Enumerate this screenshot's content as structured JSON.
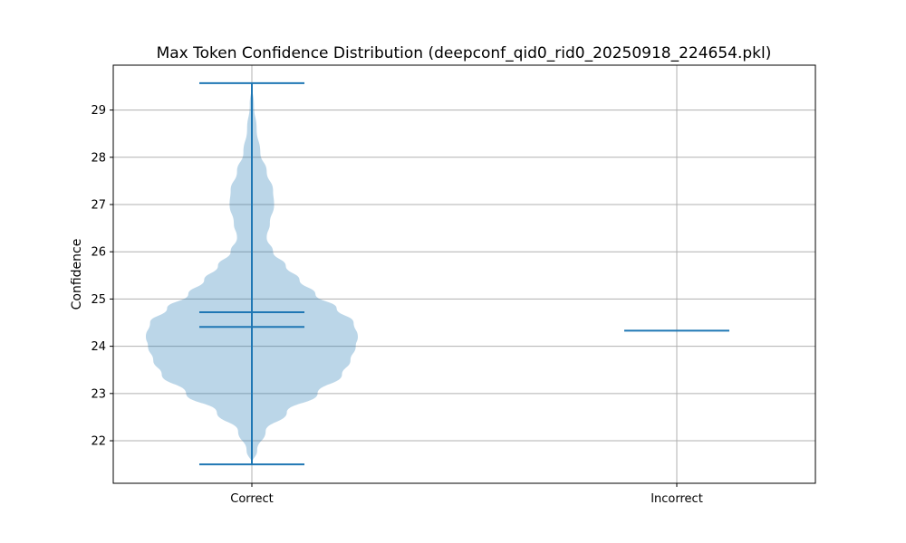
{
  "chart_data": {
    "type": "violin",
    "title": "Max Token Confidence Distribution (deepconf_qid0_rid0_20250918_224654.pkl)",
    "xlabel": "",
    "ylabel": "Confidence",
    "categories": [
      "Correct",
      "Incorrect"
    ],
    "ylim": [
      21.1,
      29.95
    ],
    "yticks": [
      22,
      23,
      24,
      25,
      26,
      27,
      28,
      29
    ],
    "grid": true,
    "colors": {
      "body": "#1f77b4",
      "body_alpha": 0.3,
      "lines": "#1f77b4"
    },
    "violins": [
      {
        "category": "Correct",
        "min": 21.5,
        "max": 29.57,
        "mean": 24.72,
        "median": 24.41,
        "density_profile": [
          {
            "y": 21.5,
            "w": 0.0
          },
          {
            "y": 21.8,
            "w": 0.05
          },
          {
            "y": 22.2,
            "w": 0.13
          },
          {
            "y": 22.6,
            "w": 0.33
          },
          {
            "y": 23.0,
            "w": 0.62
          },
          {
            "y": 23.4,
            "w": 0.85
          },
          {
            "y": 23.7,
            "w": 0.93
          },
          {
            "y": 24.0,
            "w": 0.98
          },
          {
            "y": 24.2,
            "w": 1.0
          },
          {
            "y": 24.5,
            "w": 0.96
          },
          {
            "y": 24.8,
            "w": 0.8
          },
          {
            "y": 25.1,
            "w": 0.6
          },
          {
            "y": 25.4,
            "w": 0.45
          },
          {
            "y": 25.7,
            "w": 0.32
          },
          {
            "y": 26.0,
            "w": 0.2
          },
          {
            "y": 26.3,
            "w": 0.14
          },
          {
            "y": 26.6,
            "w": 0.17
          },
          {
            "y": 27.0,
            "w": 0.21
          },
          {
            "y": 27.3,
            "w": 0.2
          },
          {
            "y": 27.7,
            "w": 0.14
          },
          {
            "y": 28.1,
            "w": 0.08
          },
          {
            "y": 28.6,
            "w": 0.045
          },
          {
            "y": 29.1,
            "w": 0.02
          },
          {
            "y": 29.57,
            "w": 0.0
          }
        ]
      },
      {
        "category": "Incorrect",
        "min": 24.33,
        "max": 24.33,
        "mean": 24.33,
        "median": 24.33,
        "density_profile": []
      }
    ]
  }
}
